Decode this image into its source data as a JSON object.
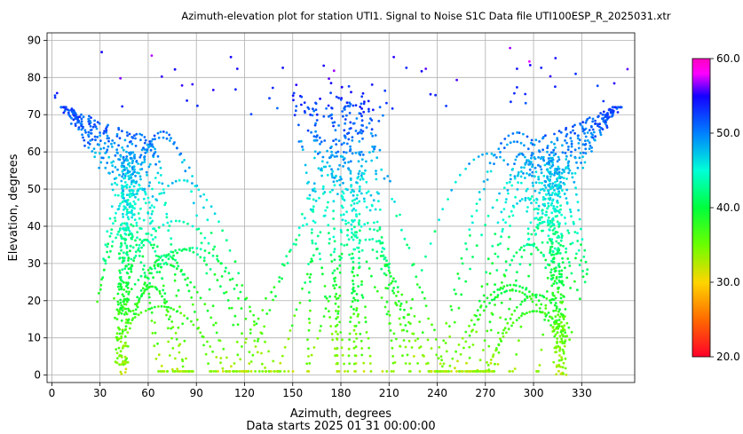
{
  "chart_data": {
    "type": "scatter",
    "title": "Azimuth-elevation plot for station UTI1.    Signal to Noise S1C    Data file UTI100ESP_R_2025031.xtr",
    "xlabel": "Azimuth, degrees",
    "ylabel": "Elevation, degrees",
    "footer": "Data starts 2025 01 31 00:00:00",
    "xlim": [
      -3,
      363
    ],
    "ylim": [
      -2,
      92
    ],
    "x_ticks": [
      0,
      30,
      60,
      90,
      120,
      150,
      180,
      210,
      240,
      270,
      300,
      330
    ],
    "y_ticks": [
      0,
      10,
      20,
      30,
      40,
      50,
      60,
      70,
      80,
      90
    ],
    "grid": true,
    "colorbar": {
      "label_ticks": [
        "20.0",
        "30.0",
        "40.0",
        "50.0",
        "60.0"
      ],
      "tick_values": [
        20,
        30,
        40,
        50,
        60
      ],
      "min": 20,
      "max": 60,
      "colormap": "gist_rainbow_r"
    },
    "color_by": "Signal to Noise S1C",
    "points_description": "satellite track samples"
  }
}
